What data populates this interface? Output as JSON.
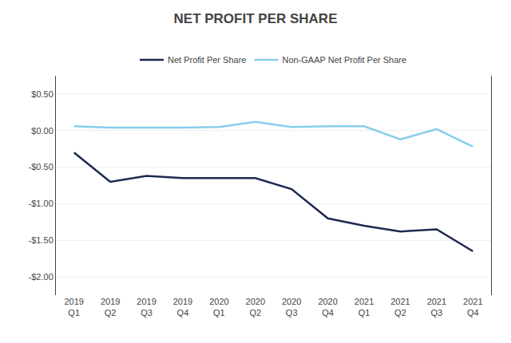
{
  "chart_data": {
    "type": "line",
    "title": "NET PROFIT PER SHARE",
    "categories": [
      "2019\nQ1",
      "2019\nQ2",
      "2019\nQ3",
      "2019\nQ4",
      "2020\nQ1",
      "2020\nQ2",
      "2020\nQ3",
      "2020\nQ4",
      "2021\nQ1",
      "2021\nQ2",
      "2021\nQ3",
      "2021\nQ4"
    ],
    "series": [
      {
        "name": "Net Profit Per Share",
        "color": "#1c2951",
        "values": [
          -0.3,
          -0.7,
          -0.62,
          -0.65,
          -0.65,
          -0.65,
          -0.8,
          -1.2,
          -1.3,
          -1.38,
          -1.35,
          -1.65
        ]
      },
      {
        "name": "Non-GAAP Net Profit Per Share",
        "color": "#87ceeb",
        "values": [
          0.06,
          0.04,
          0.04,
          0.04,
          0.05,
          0.12,
          0.05,
          0.06,
          0.06,
          -0.12,
          0.02,
          -0.22
        ]
      }
    ],
    "ylim": [
      -2.25,
      0.75
    ],
    "yticks": [
      {
        "value": 0.5,
        "label": "$0.50"
      },
      {
        "value": 0.0,
        "label": "$0.00"
      },
      {
        "value": -0.5,
        "label": "-$0.50"
      },
      {
        "value": -1.0,
        "label": "-$1.00"
      },
      {
        "value": -1.5,
        "label": "-$1.50"
      },
      {
        "value": -2.0,
        "label": "-$2.00"
      }
    ],
    "grid": true,
    "legend": "top"
  }
}
